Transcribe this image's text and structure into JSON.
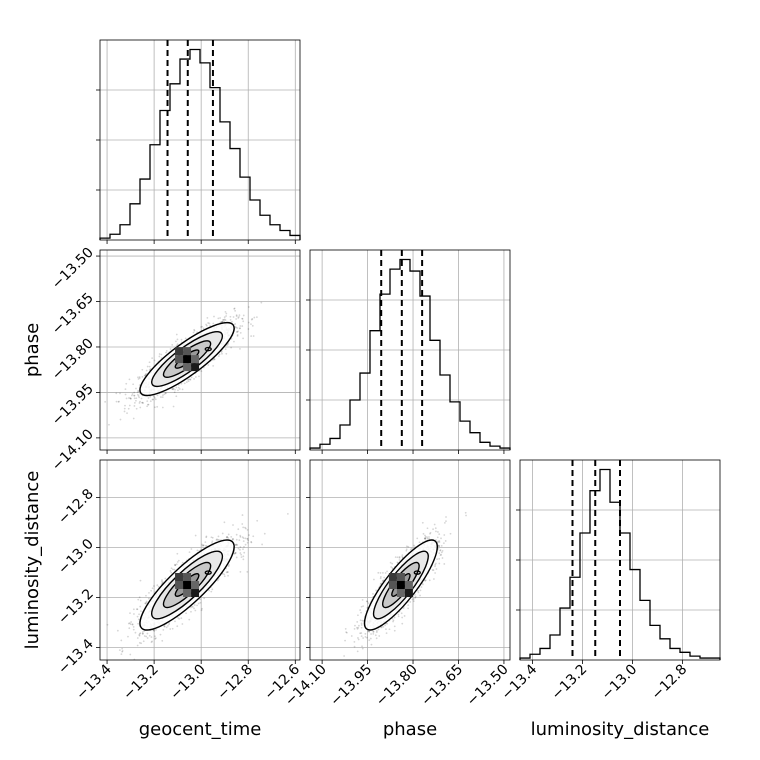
{
  "chart_data": {
    "type": "corner",
    "parameters": [
      "geocent_time",
      "phase",
      "luminosity_distance"
    ],
    "axes": {
      "geocent_time": {
        "label": "geocent_time",
        "range": [
          -13.43,
          -12.58
        ],
        "ticks": [
          -13.4,
          -13.2,
          -13.0,
          -12.8,
          -12.6
        ],
        "tick_labels": [
          "−13.4",
          "−13.2",
          "−13.0",
          "−12.8",
          "−12.6"
        ]
      },
      "phase": {
        "label": "phase",
        "range": [
          -14.14,
          -13.48
        ],
        "ticks": [
          -14.1,
          -13.95,
          -13.8,
          -13.65,
          -13.5
        ],
        "tick_labels": [
          "−14.10",
          "−13.95",
          "−13.80",
          "−13.65",
          "−13.50"
        ]
      },
      "luminosity_distance": {
        "label": "luminosity_distance",
        "range": [
          -13.45,
          -12.65
        ],
        "ticks": [
          -13.4,
          -13.2,
          -13.0,
          -12.8
        ],
        "tick_labels": [
          "−13.4",
          "−13.2",
          "−13.0",
          "−12.8"
        ]
      }
    },
    "histograms": [
      {
        "parameter": "geocent_time",
        "quantiles": [
          -13.143,
          -13.057,
          -12.95
        ],
        "edges": [
          -13.43,
          -12.58
        ],
        "counts": [
          0.5,
          1.5,
          4,
          9.5,
          16,
          25,
          34,
          41,
          47.5,
          50,
          46.5,
          40,
          31,
          24,
          16.5,
          10.5,
          6.5,
          4,
          2.5,
          1.2
        ]
      },
      {
        "parameter": "phase",
        "quantiles": [
          -13.905,
          -13.837,
          -13.77
        ],
        "edges": [
          -14.14,
          -13.48
        ],
        "counts": [
          0.5,
          1.5,
          3,
          6.5,
          13,
          20,
          31,
          40.5,
          47,
          49.5,
          46.5,
          40,
          28.5,
          19.5,
          12.5,
          7.5,
          4.5,
          2,
          1,
          0.5
        ]
      },
      {
        "parameter": "luminosity_distance",
        "quantiles": [
          -13.24,
          -13.149,
          -13.05
        ],
        "edges": [
          -13.45,
          -12.65
        ],
        "counts": [
          0.5,
          1.5,
          3,
          6.5,
          13.5,
          21.5,
          33,
          44,
          49.5,
          41,
          33,
          23.5,
          15.5,
          9,
          5.5,
          3,
          2,
          1,
          0.5,
          0.5
        ]
      }
    ],
    "joint": [
      {
        "x": "geocent_time",
        "y": "phase",
        "mean": [
          -13.06,
          -13.84
        ],
        "sd": [
          0.1,
          0.06
        ],
        "corr": 0.85
      },
      {
        "x": "geocent_time",
        "y": "luminosity_distance",
        "mean": [
          -13.06,
          -13.15
        ],
        "sd": [
          0.1,
          0.09
        ],
        "corr": 0.85
      },
      {
        "x": "phase",
        "y": "luminosity_distance",
        "mean": [
          -13.84,
          -13.15
        ],
        "sd": [
          0.06,
          0.09
        ],
        "corr": 0.85
      }
    ],
    "contour_levels_sigma": [
      0.5,
      1.0,
      1.5,
      2.0
    ],
    "grid": true
  }
}
